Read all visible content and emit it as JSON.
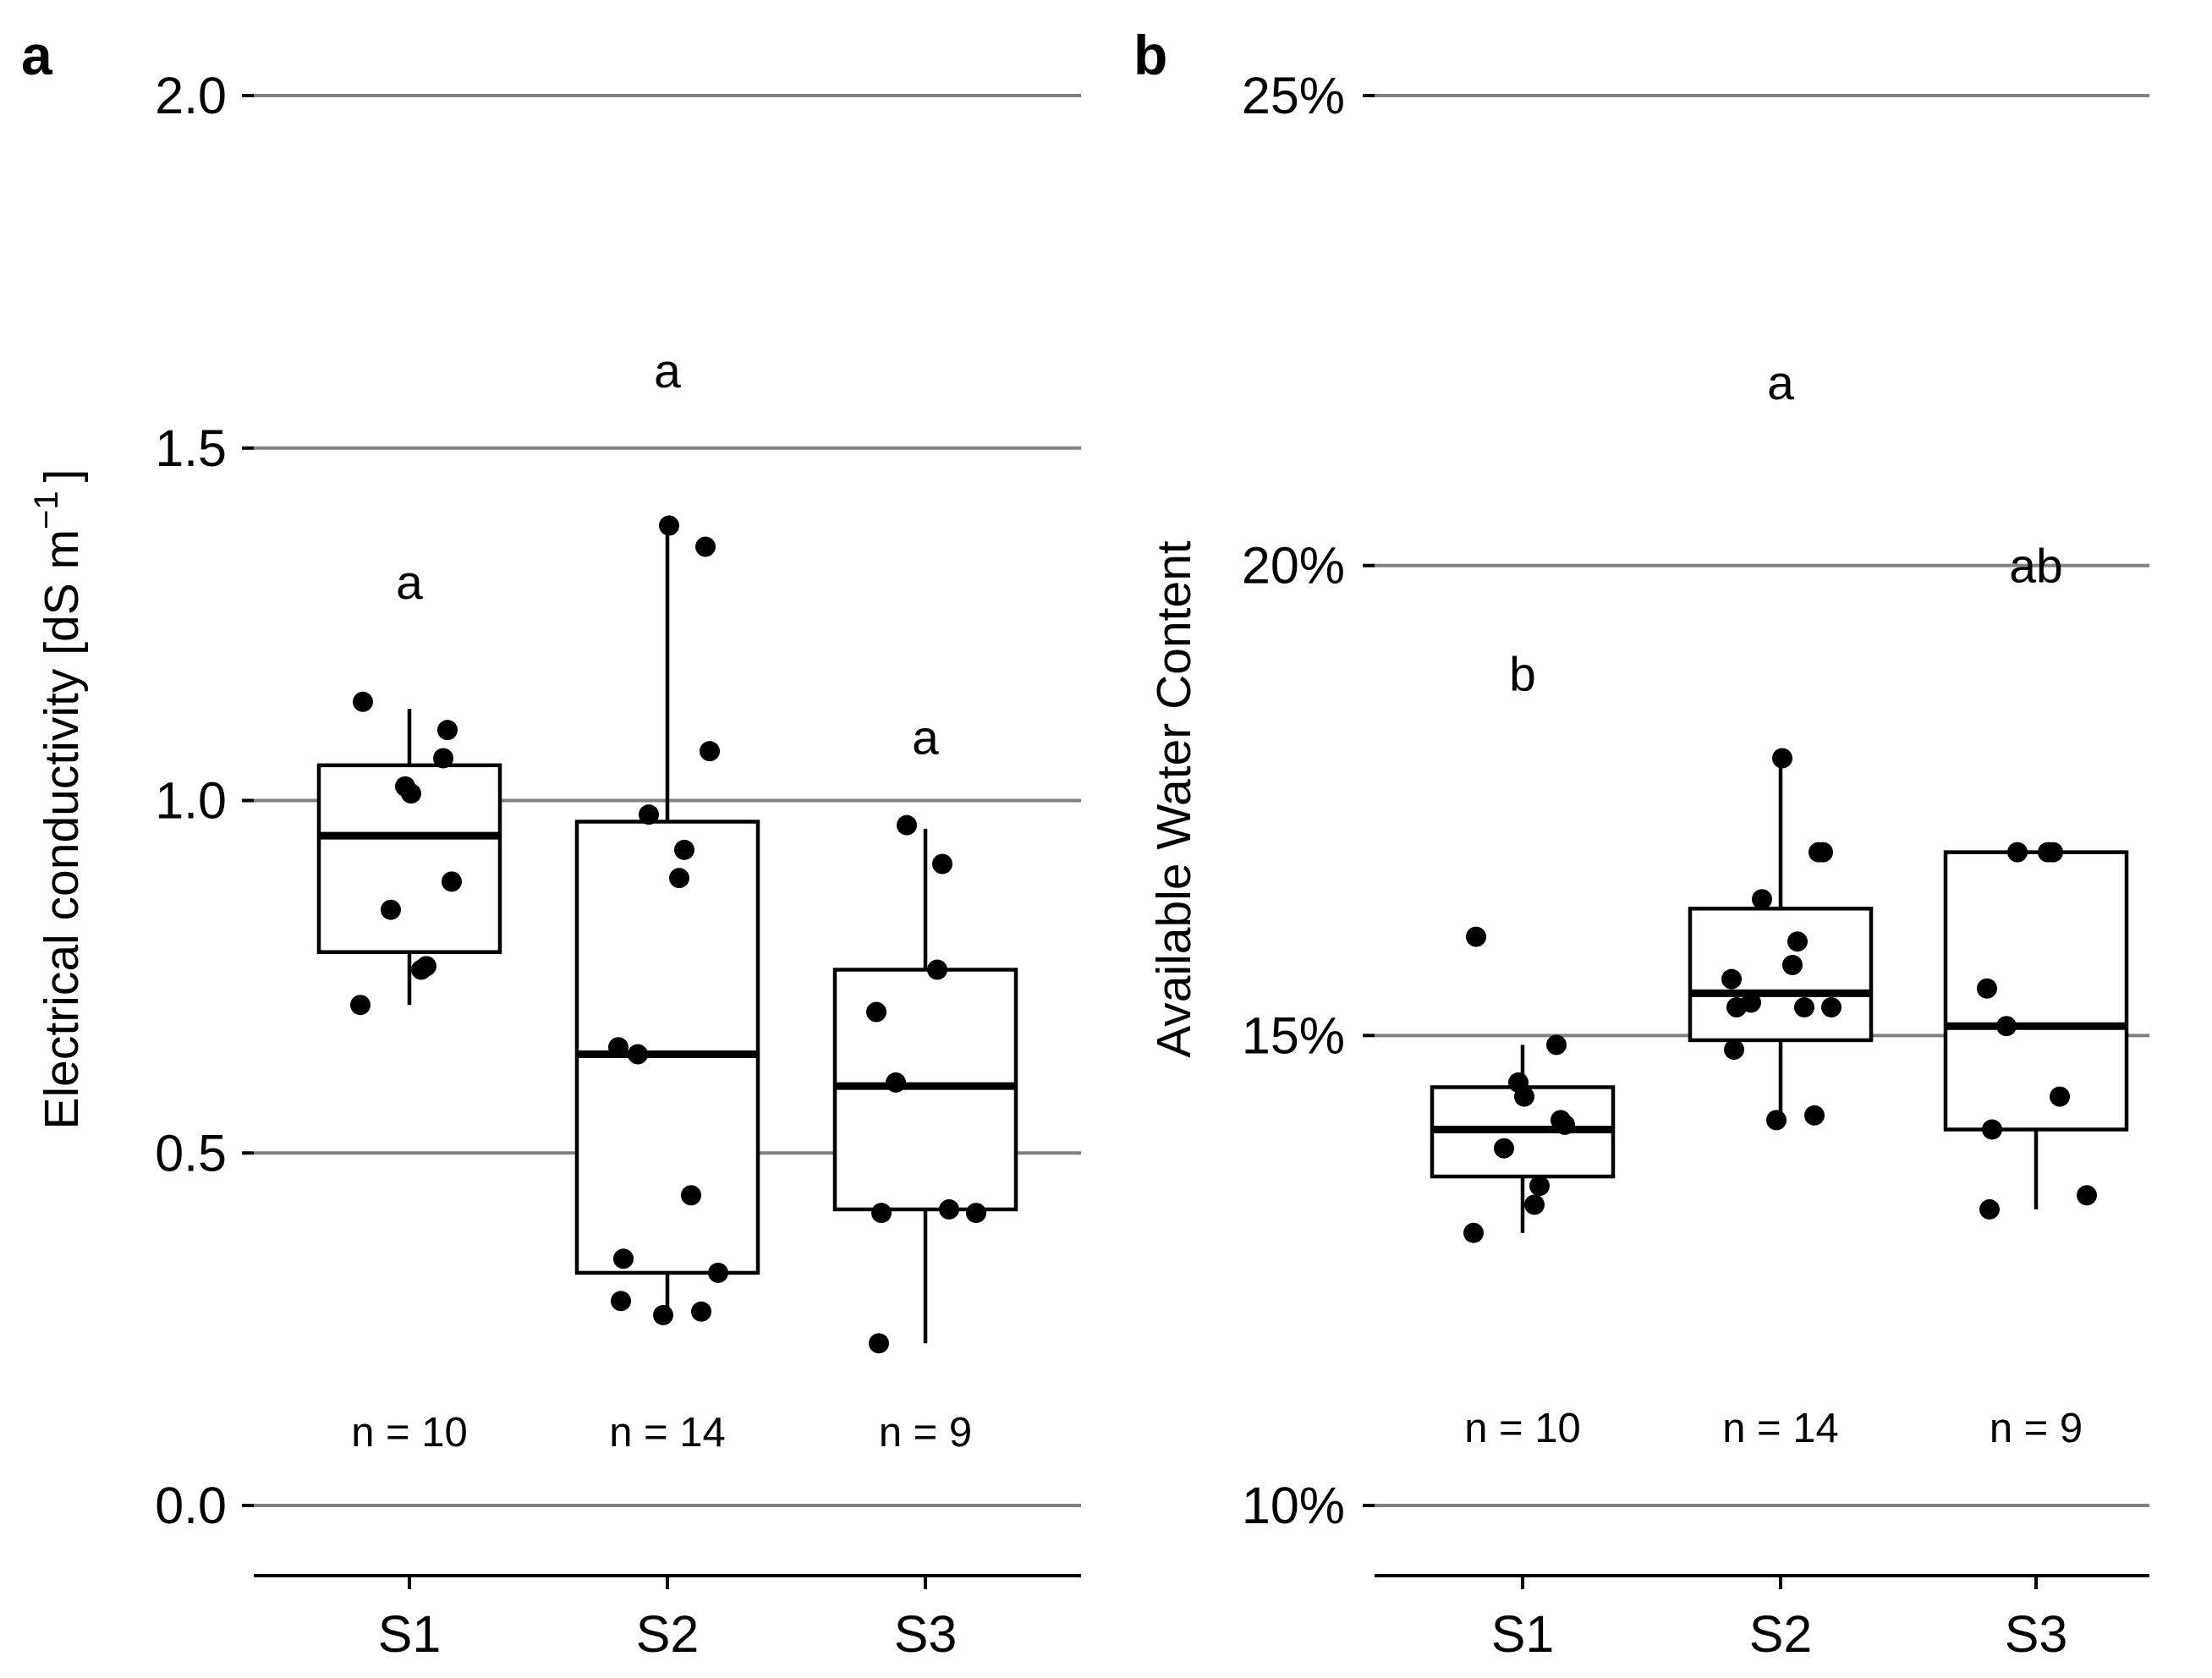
{
  "chart_data": [
    {
      "type": "box",
      "panel": "a",
      "title": "",
      "xlabel": "",
      "ylabel": "Electrical conductivity [dS  m",
      "ylabel_superscript": "−1",
      "ylabel_suffix": "]",
      "ylim": [
        0.0,
        2.0
      ],
      "yticks": [
        0.0,
        0.5,
        1.0,
        1.5,
        2.0
      ],
      "ytick_labels": [
        "0.0",
        "0.5",
        "1.0",
        "1.5",
        "2.0"
      ],
      "categories": [
        "S1",
        "S2",
        "S3"
      ],
      "groups": [
        {
          "name": "S1",
          "q1": 0.785,
          "median": 0.95,
          "q3": 1.05,
          "whisker_low": 0.71,
          "whisker_high": 1.13,
          "sig_letter": "a",
          "sig_y": 1.31,
          "n_label": "n = 10",
          "points": [
            1.14,
            1.06,
            1.02,
            1.01,
            1.1,
            0.885,
            0.845,
            0.765,
            0.76,
            0.71
          ]
        },
        {
          "name": "S2",
          "q1": 0.33,
          "median": 0.64,
          "q3": 0.97,
          "whisker_low": 0.27,
          "whisker_high": 1.39,
          "sig_letter": "a",
          "sig_y": 1.61,
          "n_label": "n = 14",
          "points": [
            1.39,
            1.36,
            1.07,
            0.98,
            0.93,
            0.89,
            0.65,
            0.64,
            0.44,
            0.35,
            0.33,
            0.29,
            0.275,
            0.27
          ]
        },
        {
          "name": "S3",
          "q1": 0.42,
          "median": 0.595,
          "q3": 0.76,
          "whisker_low": 0.23,
          "whisker_high": 0.96,
          "sig_letter": "a",
          "sig_y": 1.09,
          "n_label": "n = 9",
          "points": [
            0.965,
            0.91,
            0.76,
            0.7,
            0.6,
            0.42,
            0.415,
            0.415,
            0.23
          ]
        }
      ]
    },
    {
      "type": "box",
      "panel": "b",
      "title": "",
      "xlabel": "",
      "ylabel": "Available Water Content",
      "ylim": [
        10,
        25
      ],
      "yticks": [
        10,
        15,
        20,
        25
      ],
      "ytick_labels": [
        "10%",
        "15%",
        "20%",
        "25%"
      ],
      "categories": [
        "S1",
        "S2",
        "S3"
      ],
      "groups": [
        {
          "name": "S1",
          "q1": 13.5,
          "median": 14.0,
          "q3": 14.45,
          "whisker_low": 12.9,
          "whisker_high": 14.9,
          "sig_letter": "b",
          "sig_y": 18.85,
          "n_label": "n = 10",
          "points": [
            16.05,
            14.9,
            14.5,
            14.35,
            14.1,
            14.05,
            13.8,
            13.4,
            13.2,
            12.9
          ]
        },
        {
          "name": "S2",
          "q1": 14.95,
          "median": 15.45,
          "q3": 16.35,
          "whisker_low": 14.1,
          "whisker_high": 17.95,
          "sig_letter": "a",
          "sig_y": 21.95,
          "n_label": "n = 14",
          "points": [
            17.95,
            16.95,
            16.95,
            16.45,
            16.0,
            15.75,
            15.6,
            15.35,
            15.3,
            15.3,
            15.3,
            14.85,
            14.15,
            14.1
          ]
        },
        {
          "name": "S3",
          "q1": 14.0,
          "median": 15.1,
          "q3": 16.95,
          "whisker_low": 13.15,
          "whisker_high": 16.95,
          "sig_letter": "ab",
          "sig_y": 20.0,
          "n_label": "n = 9",
          "points": [
            16.95,
            16.95,
            16.95,
            15.5,
            15.1,
            14.35,
            14.0,
            13.3,
            13.15
          ]
        }
      ]
    }
  ],
  "panel_letters": [
    "a",
    "b"
  ]
}
